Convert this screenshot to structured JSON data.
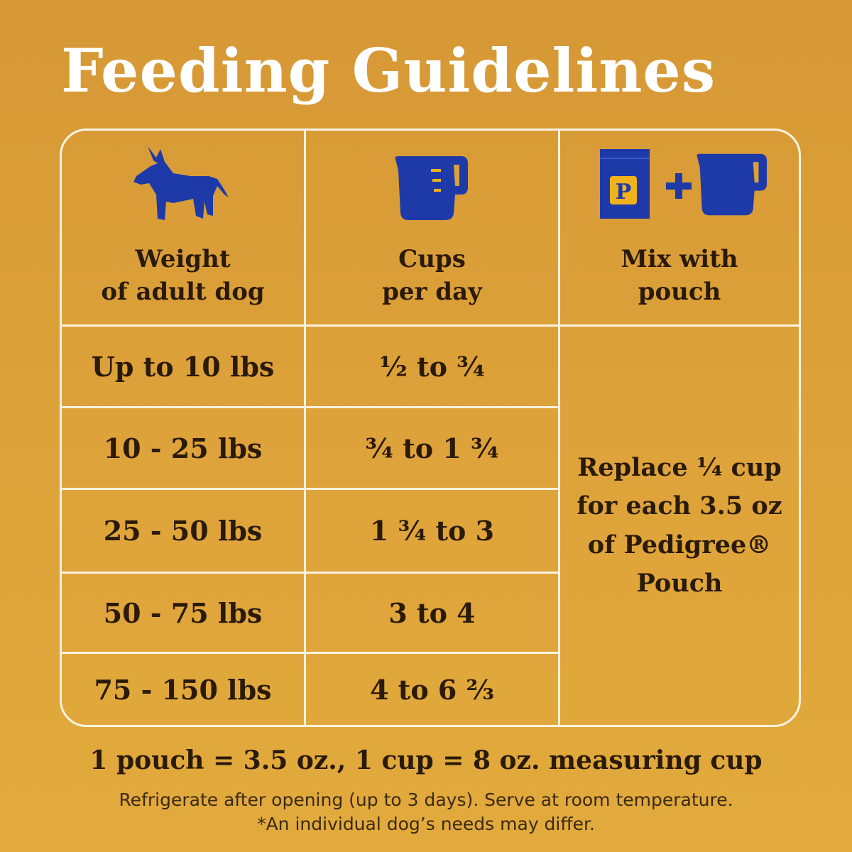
{
  "title": "Feeding Guidelines",
  "colors": {
    "background": "#dba03a",
    "icon_blue": "#1e3aa8",
    "accent_yellow": "#f2b21c",
    "grid_line": "#fbf3e2",
    "text": "#2a1a0a"
  },
  "icons": [
    "dog-icon",
    "measuring-cup-icon",
    "pouch-icon",
    "plus-icon",
    "measuring-cup-icon"
  ],
  "pouch_letter": "P",
  "columns": [
    {
      "header_line1": "Weight",
      "header_line2": "of adult dog"
    },
    {
      "header_line1": "Cups",
      "header_line2": "per day"
    },
    {
      "header_line1": "Mix with",
      "header_line2": "pouch"
    }
  ],
  "rows": [
    {
      "weight": "Up to 10 lbs",
      "cups": "½  to  ¾"
    },
    {
      "weight": "10 - 25 lbs",
      "cups": "¾  to  1 ¾"
    },
    {
      "weight": "25 - 50 lbs",
      "cups": "1 ¾  to  3"
    },
    {
      "weight": "50 - 75 lbs",
      "cups": "3  to  4"
    },
    {
      "weight": "75 - 150 lbs",
      "cups": "4  to  6 ⅔"
    }
  ],
  "mix": {
    "line1": "Replace ¼ cup",
    "line2": "for each 3.5 oz",
    "line3": "of Pedigree®",
    "line4": "Pouch"
  },
  "notes": {
    "main": "1 pouch = 3.5 oz., 1 cup = 8 oz. measuring cup",
    "line1": "Refrigerate after opening (up to 3 days). Serve at room temperature.",
    "line2": "*An individual dog’s needs may differ."
  }
}
